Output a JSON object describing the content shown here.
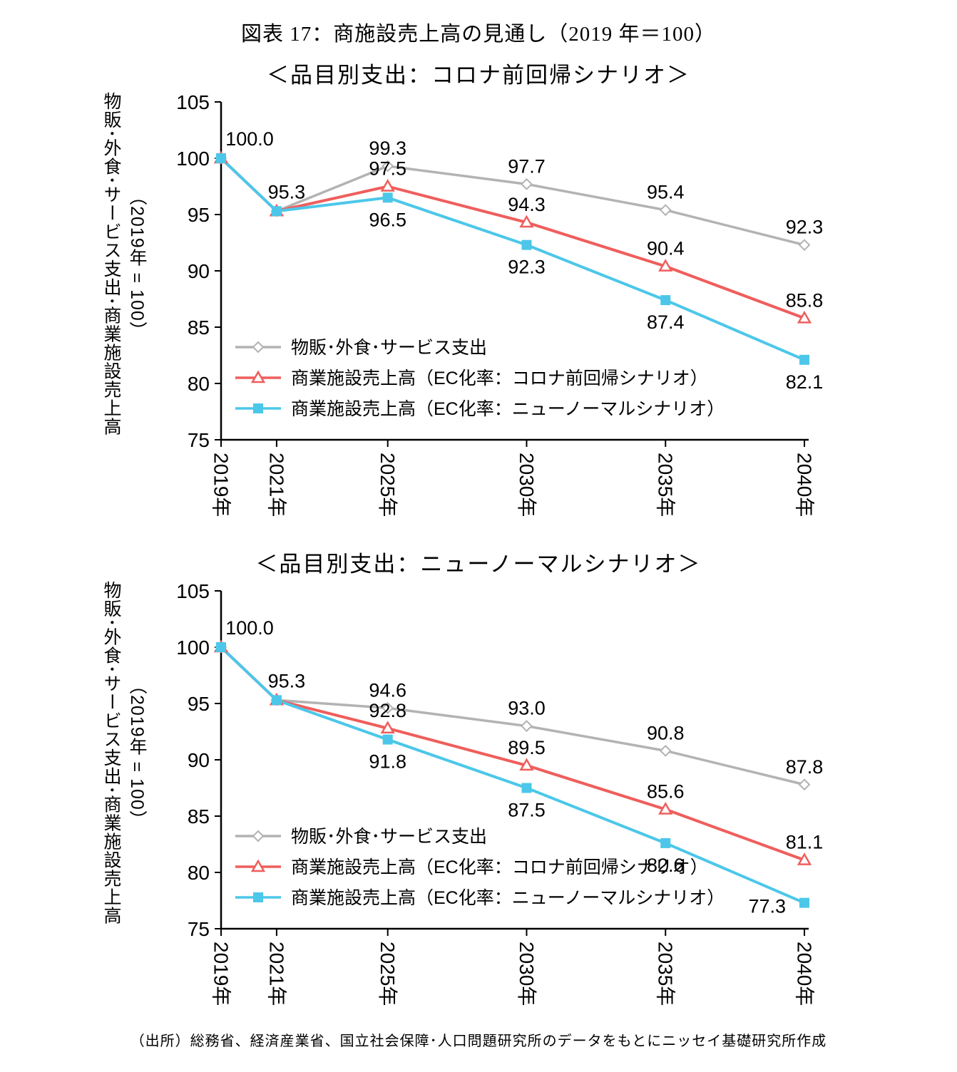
{
  "page": {
    "title": "図表 17：商施設売上高の見通し（2019 年＝100）",
    "source_note": "（出所）総務省、経済産業省、国立社会保障･人口問題研究所のデータをもとにニッセイ基礎研究所作成"
  },
  "colors": {
    "axis": "#000000",
    "series_gray": "#b3b3b3",
    "series_red": "#ef5e5c",
    "series_cyan": "#4cc7e9"
  },
  "chart_data": [
    {
      "type": "line",
      "title": "＜品目別支出：コロナ前回帰シナリオ＞",
      "ylabel": "物販･外食･サービス支出･商業施設売上高",
      "ylabel_sub": "（2019年 = 100）",
      "categories": [
        "2019年",
        "2021年",
        "2025年",
        "2030年",
        "2035年",
        "2040年"
      ],
      "x_values": [
        2019,
        2021,
        2025,
        2030,
        2035,
        2040
      ],
      "ylim": [
        75,
        105
      ],
      "yticks": [
        75,
        80,
        85,
        90,
        95,
        100,
        105
      ],
      "grid": false,
      "legend_position": "inside-bottom-left",
      "series": [
        {
          "name": "物販･外食･サービス支出",
          "marker": "diamond",
          "color": "#b3b3b3",
          "values": [
            100.0,
            95.3,
            99.3,
            97.7,
            95.4,
            92.3
          ]
        },
        {
          "name": "商業施設売上高（EC化率：コロナ前回帰シナリオ）",
          "marker": "triangle",
          "color": "#ef5e5c",
          "values": [
            100.0,
            95.3,
            97.5,
            94.3,
            90.4,
            85.8
          ]
        },
        {
          "name": "商業施設売上高（EC化率：ニューノーマルシナリオ）",
          "marker": "square",
          "color": "#4cc7e9",
          "values": [
            100.0,
            95.3,
            96.5,
            92.3,
            87.4,
            82.1
          ]
        }
      ]
    },
    {
      "type": "line",
      "title": "＜品目別支出：ニューノーマルシナリオ＞",
      "ylabel": "物販･外食･サービス支出･商業施設売上高",
      "ylabel_sub": "（2019年 = 100）",
      "categories": [
        "2019年",
        "2021年",
        "2025年",
        "2030年",
        "2035年",
        "2040年"
      ],
      "x_values": [
        2019,
        2021,
        2025,
        2030,
        2035,
        2040
      ],
      "ylim": [
        75,
        105
      ],
      "yticks": [
        75,
        80,
        85,
        90,
        95,
        100,
        105
      ],
      "grid": false,
      "legend_position": "inside-bottom-left",
      "series": [
        {
          "name": "物販･外食･サービス支出",
          "marker": "diamond",
          "color": "#b3b3b3",
          "values": [
            100.0,
            95.3,
            94.6,
            93.0,
            90.8,
            87.8
          ]
        },
        {
          "name": "商業施設売上高（EC化率：コロナ前回帰シナリオ）",
          "marker": "triangle",
          "color": "#ef5e5c",
          "values": [
            100.0,
            95.3,
            92.8,
            89.5,
            85.6,
            81.1
          ]
        },
        {
          "name": "商業施設売上高（EC化率：ニューノーマルシナリオ）",
          "marker": "square",
          "color": "#4cc7e9",
          "values": [
            100.0,
            95.3,
            91.8,
            87.5,
            82.6,
            77.3
          ]
        }
      ]
    }
  ]
}
